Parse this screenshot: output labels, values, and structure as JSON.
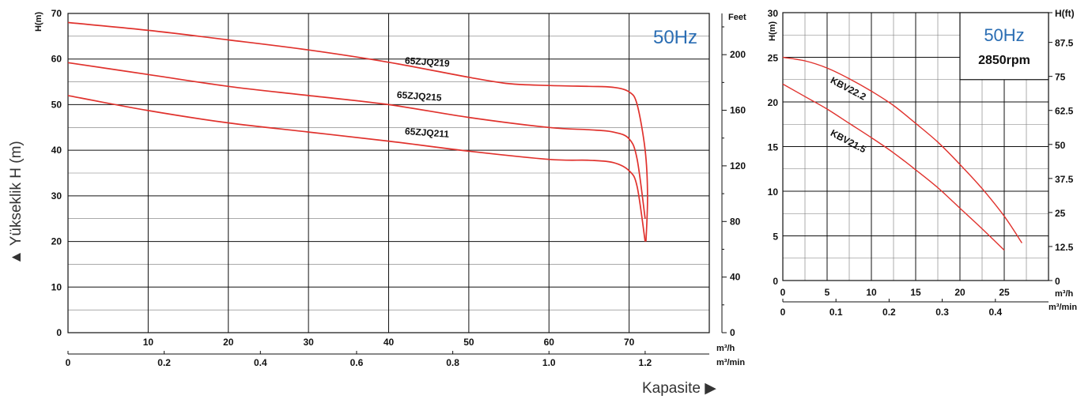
{
  "page": {
    "y_side_label": "▲ Yükseklik H (m)",
    "x_side_label": "Kapasite ▶"
  },
  "chart_data": [
    {
      "type": "line",
      "freq_label": "50Hz",
      "y_unit_left": "H(m)",
      "y_unit_right": "Feet",
      "x_unit_top": "m³/h",
      "x_unit_bottom": "m³/min",
      "xlim": [
        0,
        80
      ],
      "ylim": [
        0,
        70
      ],
      "x_ticks": [
        10,
        20,
        30,
        40,
        50,
        60,
        70
      ],
      "y_ticks": [
        0,
        10,
        20,
        30,
        40,
        50,
        60,
        70
      ],
      "x2_ticks": [
        {
          "label": "0",
          "x": 0
        },
        {
          "label": "0.2",
          "x": 12
        },
        {
          "label": "0.4",
          "x": 24
        },
        {
          "label": "0.6",
          "x": 36
        },
        {
          "label": "0.8",
          "x": 48
        },
        {
          "label": "1.0",
          "x": 60
        },
        {
          "label": "1.2",
          "x": 72
        }
      ],
      "y2_ticks": [
        {
          "label": "0",
          "y": 0
        },
        {
          "label": "40",
          "y": 12.19
        },
        {
          "label": "80",
          "y": 24.38
        },
        {
          "label": "120",
          "y": 36.58
        },
        {
          "label": "160",
          "y": 48.77
        },
        {
          "label": "200",
          "y": 60.96
        }
      ],
      "grid": true,
      "series": [
        {
          "name": "65ZJQ219",
          "label_at": [
            42,
            59
          ],
          "x": [
            0,
            10,
            20,
            30,
            40,
            50,
            55,
            60,
            65,
            68,
            70,
            71,
            72,
            72.3,
            72.1
          ],
          "y": [
            68,
            66.3,
            64.2,
            62,
            59.3,
            56,
            54.6,
            54.2,
            54,
            53.8,
            52.8,
            50,
            40,
            30,
            20
          ]
        },
        {
          "name": "65ZJQ215",
          "label_at": [
            41,
            51.5
          ],
          "x": [
            0,
            10,
            20,
            30,
            40,
            50,
            60,
            65,
            68,
            70,
            71,
            72
          ],
          "y": [
            59.2,
            56.6,
            54,
            52,
            50,
            47.2,
            45,
            44.5,
            44,
            42.5,
            38,
            25
          ]
        },
        {
          "name": "65ZJQ211",
          "label_at": [
            42,
            43.5
          ],
          "x": [
            0,
            10,
            20,
            30,
            40,
            50,
            60,
            65,
            68,
            70,
            71,
            72
          ],
          "y": [
            52,
            48.7,
            46,
            44,
            42,
            39.8,
            38,
            37.8,
            37.3,
            35.5,
            32,
            20
          ]
        }
      ]
    },
    {
      "type": "line",
      "freq_label": "50Hz",
      "rpm_label": "2850rpm",
      "y_unit_left": "H(m)",
      "y_unit_right": "H(ft)",
      "x_unit_top": "m³/h",
      "x_unit_bottom": "m³/min",
      "xlim": [
        0,
        30
      ],
      "ylim": [
        0,
        30
      ],
      "x_ticks": [
        0,
        5,
        10,
        15,
        20,
        25
      ],
      "y_ticks": [
        0,
        5,
        10,
        15,
        20,
        25,
        30
      ],
      "x2_ticks": [
        {
          "label": "0",
          "x": 0
        },
        {
          "label": "0.1",
          "x": 6
        },
        {
          "label": "0.2",
          "x": 12
        },
        {
          "label": "0.3",
          "x": 18
        },
        {
          "label": "0.4",
          "x": 24
        }
      ],
      "y2_ticks": [
        {
          "label": "0",
          "y": 0
        },
        {
          "label": "12.5",
          "y": 3.81
        },
        {
          "label": "25",
          "y": 7.62
        },
        {
          "label": "37.5",
          "y": 11.43
        },
        {
          "label": "50",
          "y": 15.24
        },
        {
          "label": "62.5",
          "y": 19.05
        },
        {
          "label": "75",
          "y": 22.86
        },
        {
          "label": "87.5",
          "y": 26.67
        },
        {
          "label": "H(ft)",
          "y": 30
        }
      ],
      "grid": true,
      "series": [
        {
          "name": "KBV22.2",
          "label_at": [
            5.3,
            22.2
          ],
          "x": [
            0,
            2.5,
            5,
            7.5,
            10,
            12.5,
            15,
            17.5,
            20,
            22.5,
            25,
            27
          ],
          "y": [
            25,
            24.6,
            23.8,
            22.6,
            21.2,
            19.6,
            17.6,
            15.5,
            13,
            10.3,
            7.2,
            4.2
          ]
        },
        {
          "name": "KBV21.5",
          "label_at": [
            5.3,
            16.3
          ],
          "x": [
            0,
            2.5,
            5,
            7.5,
            10,
            12.5,
            15,
            17.5,
            20,
            22.5,
            25
          ],
          "y": [
            22,
            20.6,
            19.2,
            17.6,
            16,
            14.3,
            12.4,
            10.4,
            8.1,
            5.8,
            3.4
          ]
        }
      ]
    }
  ]
}
